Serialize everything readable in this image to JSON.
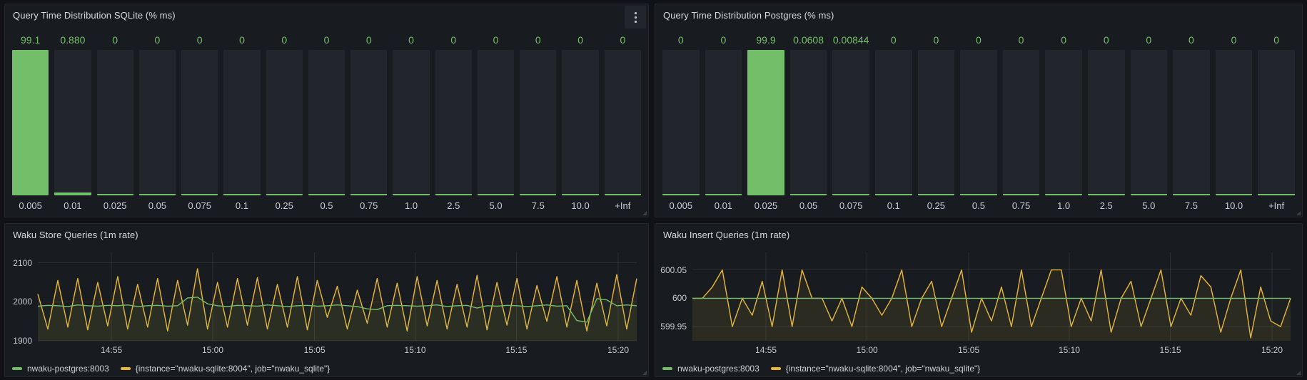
{
  "colors": {
    "page_bg": "#111217",
    "panel_bg": "#181b1f",
    "bar_bg": "#22252b",
    "green": "#73BF69",
    "yellow": "#EAB839",
    "axis_text": "#c8c9ce",
    "title_text": "#d9dadc"
  },
  "icons": {
    "panel_menu": "kebab-menu-icon",
    "panel_resize": "resize-corner-icon"
  },
  "chart_data": [
    {
      "type": "bar",
      "title": "Query Time Distribution SQLite (% ms)",
      "categories": [
        "0.005",
        "0.01",
        "0.025",
        "0.05",
        "0.075",
        "0.1",
        "0.25",
        "0.5",
        "0.75",
        "1.0",
        "2.5",
        "5.0",
        "7.5",
        "10.0",
        "+Inf"
      ],
      "values": [
        99.1,
        0.88,
        0,
        0,
        0,
        0,
        0,
        0,
        0,
        0,
        0,
        0,
        0,
        0,
        0
      ],
      "value_labels": [
        "99.1",
        "0.880",
        "0",
        "0",
        "0",
        "0",
        "0",
        "0",
        "0",
        "0",
        "0",
        "0",
        "0",
        "0",
        "0"
      ],
      "bar_color": "#73BF69",
      "ylim": [
        0,
        100
      ],
      "has_menu": true
    },
    {
      "type": "bar",
      "title": "Query Time Distribution Postgres (% ms)",
      "categories": [
        "0.005",
        "0.01",
        "0.025",
        "0.05",
        "0.075",
        "0.1",
        "0.25",
        "0.5",
        "0.75",
        "1.0",
        "2.5",
        "5.0",
        "7.5",
        "10.0",
        "+Inf"
      ],
      "values": [
        0,
        0,
        99.9,
        0.0608,
        0.00844,
        0,
        0,
        0,
        0,
        0,
        0,
        0,
        0,
        0,
        0
      ],
      "value_labels": [
        "0",
        "0",
        "99.9",
        "0.0608",
        "0.00844",
        "0",
        "0",
        "0",
        "0",
        "0",
        "0",
        "0",
        "0",
        "0",
        "0"
      ],
      "bar_color": "#73BF69",
      "ylim": [
        0,
        100
      ],
      "has_menu": false
    },
    {
      "type": "line",
      "title": "Waku Store Queries (1m rate)",
      "ylim": [
        1900,
        2127
      ],
      "yticks": [
        {
          "v": 1900,
          "label": "1900"
        },
        {
          "v": 2000,
          "label": "2000"
        },
        {
          "v": 2100,
          "label": "2100"
        }
      ],
      "xticks": [
        {
          "f": 0.123,
          "label": "14:55"
        },
        {
          "f": 0.292,
          "label": "15:00"
        },
        {
          "f": 0.462,
          "label": "15:05"
        },
        {
          "f": 0.63,
          "label": "15:10"
        },
        {
          "f": 0.799,
          "label": "15:15"
        },
        {
          "f": 0.969,
          "label": "15:20"
        }
      ],
      "series": [
        {
          "name": "nwaku-postgres:8003",
          "color": "#73BF69",
          "fill": "rgba(115,191,105,0.05)",
          "values": [
            1989,
            1991,
            1990,
            1988,
            1992,
            1990,
            1989,
            1991,
            1990,
            1992,
            1988,
            1990,
            1991,
            1989,
            1990,
            2010,
            2012,
            1995,
            1990,
            1988,
            1991,
            1990,
            1989,
            1992,
            1990,
            1988,
            1990,
            1991,
            1989,
            1990,
            1992,
            1990,
            1988,
            1982,
            1980,
            1990,
            1991,
            1990,
            1989,
            1990,
            1992,
            1988,
            1990,
            1991,
            1984,
            1990,
            1989,
            1991,
            1990,
            1988,
            1990,
            1992,
            1989,
            1990,
            1952,
            1948,
            2008,
            2005,
            1990,
            1992,
            1990
          ]
        },
        {
          "name": "{instance=\"nwaku-sqlite:8004\", job=\"nwaku_sqlite\"}",
          "color": "#EAB839",
          "fill": "rgba(234,184,57,0.08)",
          "values": [
            2020,
            1930,
            2055,
            1935,
            2060,
            1928,
            2050,
            1938,
            2065,
            1930,
            2045,
            1935,
            2060,
            1925,
            2055,
            1940,
            2085,
            1930,
            2050,
            1935,
            2060,
            1940,
            2062,
            1930,
            2045,
            1935,
            2065,
            1928,
            2055,
            1960,
            2040,
            1930,
            2030,
            1945,
            2060,
            1935,
            2048,
            1925,
            2065,
            1938,
            2055,
            1930,
            2045,
            1935,
            2068,
            1928,
            2050,
            1940,
            2060,
            1930,
            2042,
            1950,
            2065,
            1935,
            2055,
            1925,
            2048,
            1938,
            2070,
            1930,
            2060
          ]
        }
      ]
    },
    {
      "type": "line",
      "title": "Waku Insert Queries (1m rate)",
      "ylim": [
        599.925,
        600.081
      ],
      "yticks": [
        {
          "v": 599.95,
          "label": "599.95"
        },
        {
          "v": 600,
          "label": "600"
        },
        {
          "v": 600.05,
          "label": "600.05"
        }
      ],
      "xticks": [
        {
          "f": 0.123,
          "label": "14:55"
        },
        {
          "f": 0.292,
          "label": "15:00"
        },
        {
          "f": 0.462,
          "label": "15:05"
        },
        {
          "f": 0.63,
          "label": "15:10"
        },
        {
          "f": 0.799,
          "label": "15:15"
        },
        {
          "f": 0.969,
          "label": "15:20"
        }
      ],
      "series": [
        {
          "name": "nwaku-postgres:8003",
          "color": "#73BF69",
          "fill": "rgba(115,191,105,0.04)",
          "values": [
            600,
            600
          ]
        },
        {
          "name": "{instance=\"nwaku-sqlite:8004\", job=\"nwaku_sqlite\"}",
          "color": "#EAB839",
          "fill": "rgba(234,184,57,0.08)",
          "values": [
            600,
            600,
            600.02,
            600.05,
            599.95,
            600,
            599.97,
            600.03,
            599.95,
            600.05,
            599.95,
            600.05,
            600,
            600,
            599.96,
            600,
            599.95,
            600.02,
            600,
            599.97,
            600,
            600.05,
            599.95,
            600,
            600.03,
            599.95,
            600,
            600.05,
            599.94,
            600,
            599.96,
            600.02,
            599.95,
            600.05,
            599.95,
            600,
            600.05,
            600.05,
            599.95,
            600,
            599.96,
            600.05,
            599.94,
            600,
            600.03,
            599.95,
            600,
            600.05,
            599.95,
            600,
            599.97,
            600.04,
            600.02,
            599.94,
            600,
            600.05,
            599.93,
            600.02,
            599.96,
            599.95,
            600
          ]
        }
      ]
    }
  ]
}
